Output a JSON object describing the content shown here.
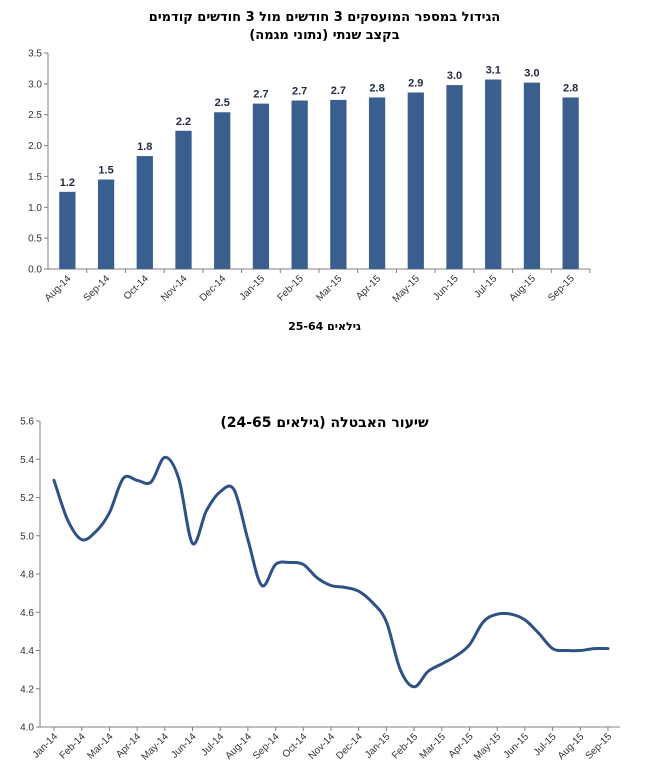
{
  "chart_data": [
    {
      "type": "bar",
      "title": "הגידול במספר המועסקים 3 חודשים מול 3 חודשים קודמים",
      "subtitle": "בקצב שנתי (נתוני מגמה)",
      "xlabel": "גילאים 25-64",
      "ylabel": "",
      "categories": [
        "Aug-14",
        "Sep-14",
        "Oct-14",
        "Nov-14",
        "Dec-14",
        "Jan-15",
        "Feb-15",
        "Mar-15",
        "Apr-15",
        "May-15",
        "Jun-15",
        "Jul-15",
        "Aug-15",
        "Sep-15"
      ],
      "values": [
        1.25,
        1.45,
        1.83,
        2.24,
        2.54,
        2.68,
        2.73,
        2.74,
        2.78,
        2.86,
        2.98,
        3.07,
        3.02,
        2.78
      ],
      "data_labels": [
        "1.2",
        "1.5",
        "1.8",
        "2.2",
        "2.5",
        "2.7",
        "2.7",
        "2.7",
        "2.8",
        "2.9",
        "3.0",
        "3.1",
        "3.0",
        "2.8"
      ],
      "ylim": [
        0,
        3.5
      ],
      "yticks": [
        "0.0",
        "0.5",
        "1.0",
        "1.5",
        "2.0",
        "2.5",
        "3.0",
        "3.5"
      ],
      "grid": false,
      "bar_color": "#3a5f8f"
    },
    {
      "type": "line",
      "title": "שיעור האבטלה (גילאים 24-65)",
      "xlabel": "",
      "ylabel": "",
      "categories": [
        "Jan-14",
        "Feb-14",
        "Mar-14",
        "Apr-14",
        "May-14",
        "Jun-14",
        "Jul-14",
        "Aug-14",
        "Sep-14",
        "Oct-14",
        "Nov-14",
        "Dec-14",
        "Jan-15",
        "Feb-15",
        "Mar-15",
        "Apr-15",
        "May-15",
        "Jun-15",
        "Jul-15",
        "Aug-15",
        "Sep-15"
      ],
      "x": [
        0,
        0.5,
        1,
        1.5,
        2,
        2.5,
        3,
        3.5,
        4,
        4.5,
        5,
        5.5,
        6,
        6.5,
        7,
        7.5,
        8,
        8.5,
        9,
        9.5,
        10,
        10.5,
        11,
        11.5,
        12,
        12.5,
        13,
        13.5,
        14,
        14.5,
        15,
        15.5,
        16,
        16.5,
        17,
        17.5,
        18,
        18.5,
        19,
        19.5,
        20
      ],
      "values": [
        5.29,
        5.08,
        4.98,
        5.02,
        5.12,
        5.3,
        5.29,
        5.28,
        5.41,
        5.3,
        4.96,
        5.13,
        5.23,
        5.24,
        4.98,
        4.74,
        4.85,
        4.86,
        4.85,
        4.78,
        4.74,
        4.73,
        4.71,
        4.65,
        4.55,
        4.3,
        4.21,
        4.29,
        4.33,
        4.37,
        4.43,
        4.55,
        4.59,
        4.59,
        4.56,
        4.49,
        4.41,
        4.4,
        4.4,
        4.41,
        4.41
      ],
      "ylim": [
        4.0,
        5.6
      ],
      "yticks": [
        "4.0",
        "4.2",
        "4.4",
        "4.6",
        "4.8",
        "5.0",
        "5.2",
        "5.4",
        "5.6"
      ],
      "grid": false,
      "line_color": "#2e5186"
    }
  ]
}
